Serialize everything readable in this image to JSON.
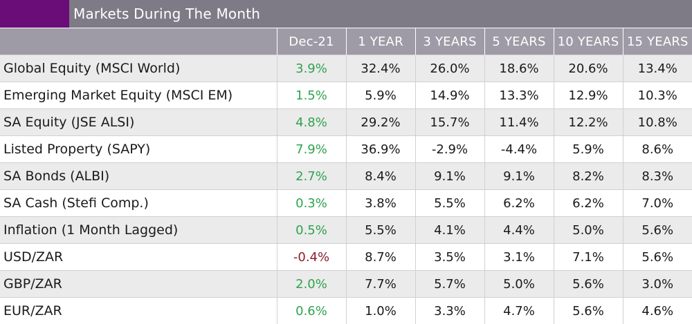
{
  "title": "Markets During The Month",
  "colors": {
    "accent": "#6a0d78",
    "title_bg": "#7e7b86",
    "header_bg": "#9f9ba6",
    "positive": "#2fa24e",
    "negative": "#8b1d2c",
    "row_shade": "#ebebeb"
  },
  "columns": [
    "Dec-21",
    "1 YEAR",
    "3 YEARS",
    "5 YEARS",
    "10 YEARS",
    "15 YEARS"
  ],
  "rows": [
    {
      "name": "Global Equity (MSCI World)",
      "values": [
        "3.9%",
        "32.4%",
        "26.0%",
        "18.6%",
        "20.6%",
        "13.4%"
      ]
    },
    {
      "name": "Emerging Market Equity (MSCI EM)",
      "values": [
        "1.5%",
        "5.9%",
        "14.9%",
        "13.3%",
        "12.9%",
        "10.3%"
      ]
    },
    {
      "name": "SA Equity (JSE ALSI)",
      "values": [
        "4.8%",
        "29.2%",
        "15.7%",
        "11.4%",
        "12.2%",
        "10.8%"
      ]
    },
    {
      "name": "Listed Property (SAPY)",
      "values": [
        "7.9%",
        "36.9%",
        "-2.9%",
        "-4.4%",
        "5.9%",
        "8.6%"
      ]
    },
    {
      "name": "SA Bonds (ALBI)",
      "values": [
        "2.7%",
        "8.4%",
        "9.1%",
        "9.1%",
        "8.2%",
        "8.3%"
      ]
    },
    {
      "name": "SA Cash (Stefi Comp.)",
      "values": [
        "0.3%",
        "3.8%",
        "5.5%",
        "6.2%",
        "6.2%",
        "7.0%"
      ]
    },
    {
      "name": "Inflation (1 Month Lagged)",
      "values": [
        "0.5%",
        "5.5%",
        "4.1%",
        "4.4%",
        "5.0%",
        "5.6%"
      ]
    },
    {
      "name": "USD/ZAR",
      "values": [
        "-0.4%",
        "8.7%",
        "3.5%",
        "3.1%",
        "7.1%",
        "5.6%"
      ]
    },
    {
      "name": "GBP/ZAR",
      "values": [
        "2.0%",
        "7.7%",
        "5.7%",
        "5.0%",
        "5.6%",
        "3.0%"
      ]
    },
    {
      "name": "EUR/ZAR",
      "values": [
        "0.6%",
        "1.0%",
        "3.3%",
        "4.7%",
        "5.6%",
        "4.6%"
      ]
    }
  ]
}
